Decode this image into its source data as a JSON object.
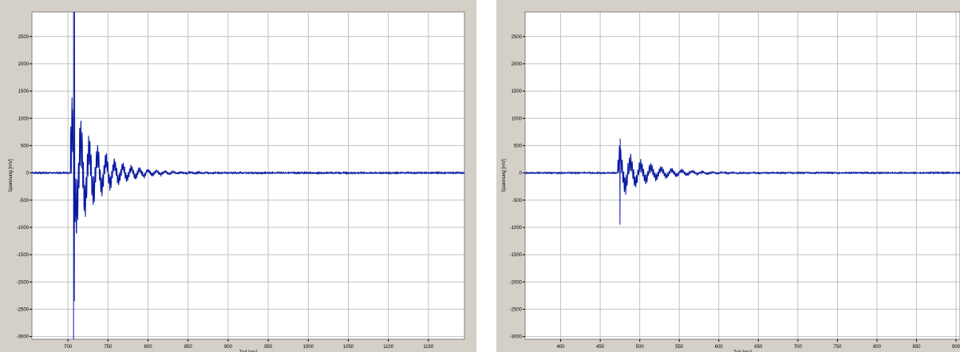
{
  "colors": {
    "panel_bg": "#d4d0c8",
    "plot_bg": "#ffffff",
    "grid": "#c0c0c0",
    "trace": "#0a1aa0"
  },
  "chart_data": [
    {
      "type": "line",
      "title": "",
      "xlabel": "Zeit [ms]",
      "ylabel": "Spannung [mV]",
      "xlim": [
        655,
        1195
      ],
      "ylim": [
        -3050,
        2950
      ],
      "xticks": [
        700,
        750,
        800,
        850,
        900,
        950,
        1000,
        1050,
        1100,
        1150
      ],
      "yticks": [
        2500,
        2000,
        1500,
        1000,
        500,
        0,
        -500,
        -1000,
        -1500,
        -2000,
        -2500,
        -3000
      ],
      "grid": true,
      "marker_x": 707,
      "series": [
        {
          "signal": "decaying_oscillation",
          "baseline": 0,
          "noise": 12,
          "onset": 703,
          "spike_time": 708,
          "spike_max": 2950,
          "spike_min": -2350,
          "peak_amplitude": 1650,
          "decay_ms": 32,
          "period_ms": 10.5,
          "fast_period_ms": 1.6,
          "end": 1195
        }
      ]
    },
    {
      "type": "line",
      "title": "",
      "xlabel": "Zeit [ms]",
      "ylabel": "Spannung [mV]",
      "xlim": [
        355,
        905
      ],
      "ylim": [
        -3050,
        2950
      ],
      "xticks": [
        400,
        450,
        500,
        550,
        600,
        650,
        700,
        750,
        800,
        850,
        900
      ],
      "yticks": [
        2500,
        2000,
        1500,
        1000,
        500,
        0,
        -500,
        -1000,
        -1500,
        -2000,
        -2500,
        -3000
      ],
      "grid": true,
      "series": [
        {
          "signal": "decaying_oscillation",
          "baseline": 0,
          "noise": 10,
          "onset": 472,
          "spike_time": 475,
          "spike_max": 630,
          "spike_min": -950,
          "peak_amplitude": 560,
          "decay_ms": 38,
          "period_ms": 13,
          "fast_period_ms": 1.8,
          "end": 905
        }
      ]
    }
  ]
}
